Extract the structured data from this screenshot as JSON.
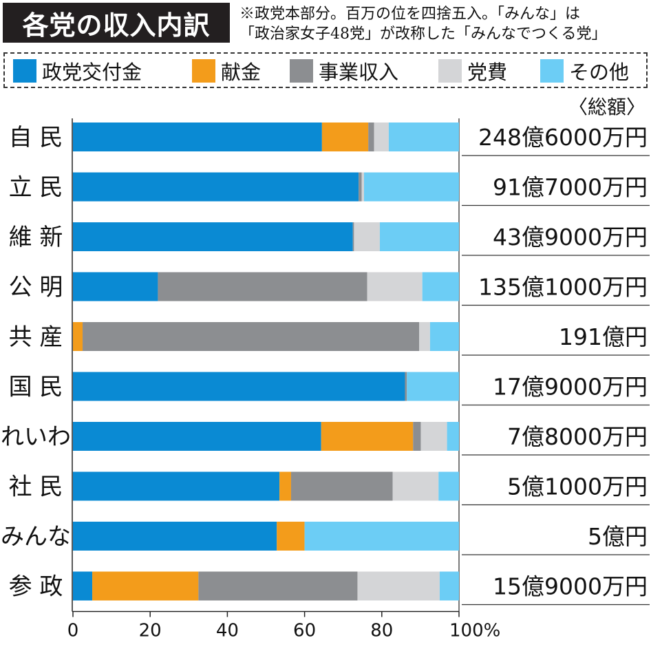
{
  "title": "各党の収入内訳",
  "note": {
    "line1": "※政党本部分。百万の位を四捨五入。「みんな」は",
    "line2": "「政治家女子48党」が改称した「みんなでつくる党」"
  },
  "total_header": "〈総額〉",
  "colors": {
    "政党交付金": "#0a8ad3",
    "献金": "#f39c1b",
    "事業収入": "#8c8e91",
    "党費": "#d4d5d7",
    "その他": "#6ccdf5"
  },
  "chart_data": {
    "type": "bar",
    "orientation": "horizontal",
    "stacked": true,
    "title": "各党の収入内訳",
    "xlabel": "",
    "ylabel": "",
    "xlim": [
      0,
      100
    ],
    "x_ticks": [
      "0",
      "20",
      "40",
      "60",
      "80",
      "100%"
    ],
    "legend_position": "top",
    "categories": [
      "自 民",
      "立 民",
      "維 新",
      "公 明",
      "共 産",
      "国 民",
      "れいわ",
      "社 民",
      "みんな",
      "参 政"
    ],
    "totals": [
      "248億6000万円",
      "91億7000万円",
      "43億9000万円",
      "135億1000万円",
      "191億円",
      "17億9000万円",
      "7億8000万円",
      "5億1000万円",
      "5億円",
      "15億9000万円"
    ],
    "series": [
      {
        "name": "政党交付金",
        "values": [
          64.5,
          74.0,
          72.5,
          22.0,
          0.0,
          86.0,
          64.3,
          53.5,
          52.8,
          5.0
        ]
      },
      {
        "name": "献金",
        "values": [
          12.0,
          0.0,
          0.0,
          0.0,
          2.5,
          0.0,
          23.8,
          3.0,
          7.2,
          27.5
        ]
      },
      {
        "name": "事業収入",
        "values": [
          1.5,
          0.8,
          0.3,
          54.2,
          87.2,
          0.5,
          2.0,
          26.3,
          0.0,
          41.2
        ]
      },
      {
        "name": "党費",
        "values": [
          3.8,
          0.6,
          6.7,
          14.3,
          2.8,
          0.0,
          6.8,
          11.9,
          0.0,
          21.3
        ]
      },
      {
        "name": "その他",
        "values": [
          18.2,
          24.6,
          20.5,
          9.5,
          7.5,
          13.5,
          3.1,
          5.3,
          40.0,
          5.0
        ]
      }
    ]
  }
}
